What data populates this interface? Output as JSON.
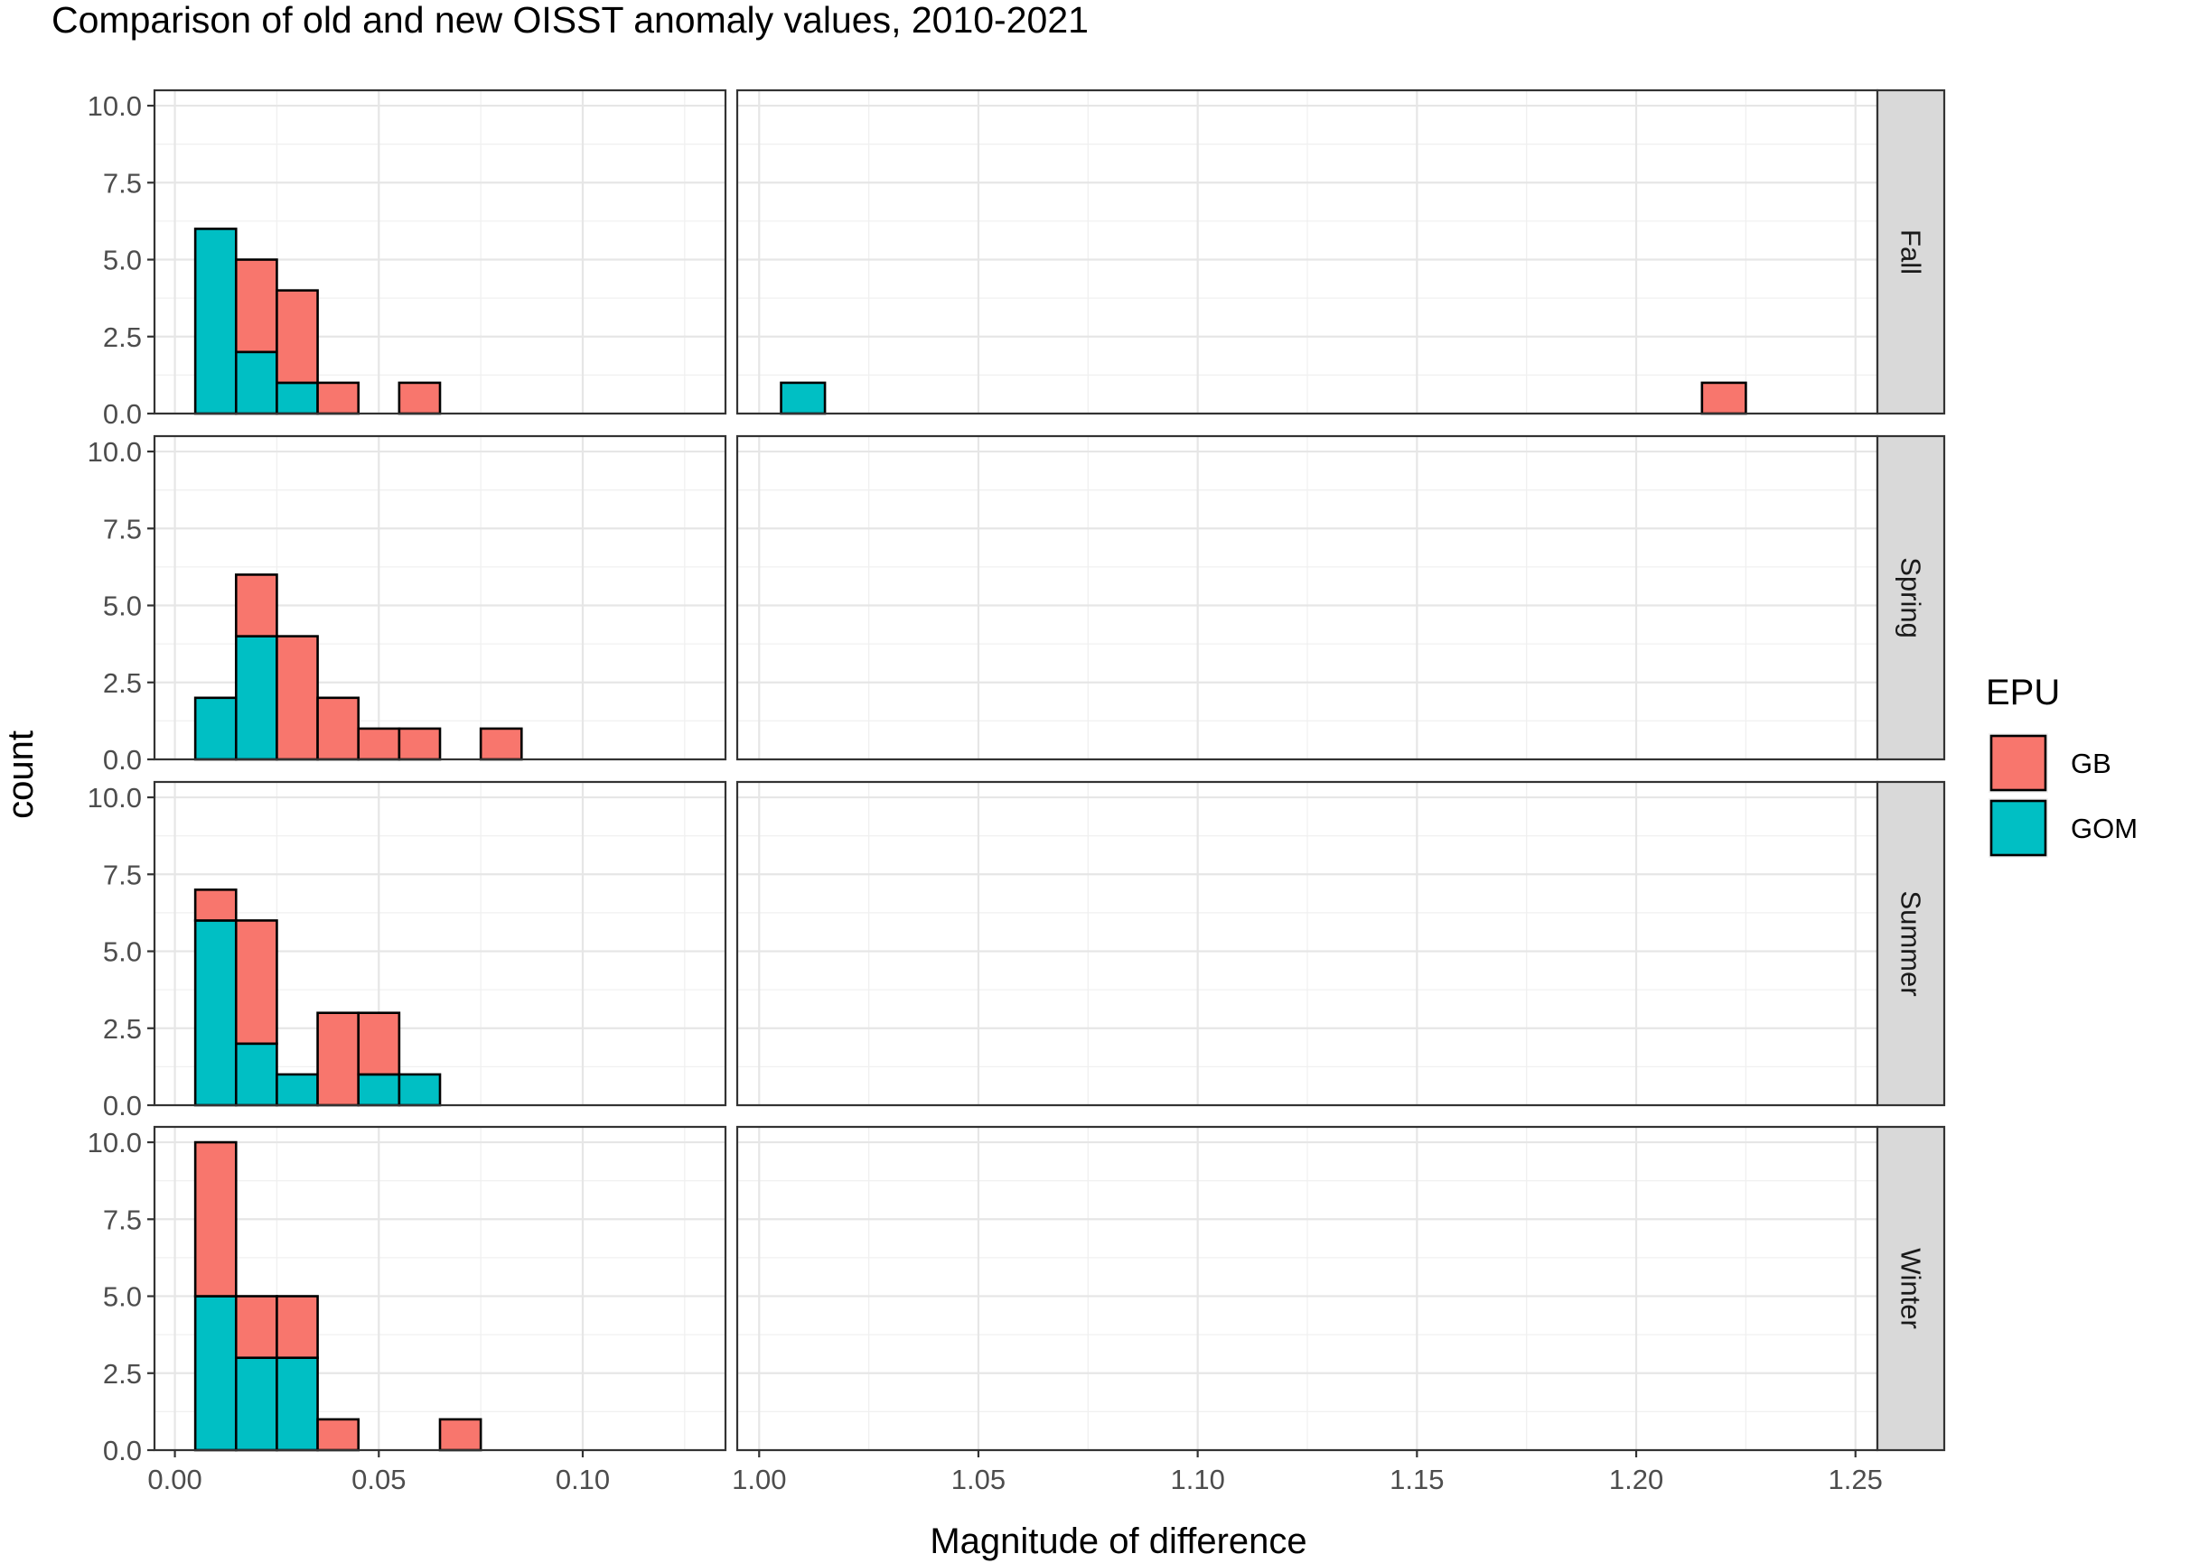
{
  "chart_data": {
    "type": "bar",
    "subtype": "faceted stacked histogram",
    "title": "Comparison of old and new OISST anomaly values, 2010-2021",
    "xlabel": "Magnitude of difference",
    "ylabel": "count",
    "bin_width": 0.01,
    "ylim": [
      0,
      10.5
    ],
    "y_ticks": [
      "0.0",
      "2.5",
      "5.0",
      "7.5",
      "10.0"
    ],
    "y_tick_values": [
      0,
      2.5,
      5,
      7.5,
      10
    ],
    "x_panels": [
      {
        "xlim": [
          -0.005,
          0.135
        ],
        "x_ticks": [
          "0.00",
          "0.05",
          "0.10"
        ],
        "x_tick_values": [
          0.0,
          0.05,
          0.1
        ]
      },
      {
        "xlim": [
          0.995,
          1.255
        ],
        "x_ticks": [
          "1.00",
          "1.05",
          "1.10",
          "1.15",
          "1.20",
          "1.25"
        ],
        "x_tick_values": [
          1.0,
          1.05,
          1.1,
          1.15,
          1.2,
          1.25
        ]
      }
    ],
    "grid": true,
    "legend": {
      "title": "EPU",
      "position": "right",
      "entries": [
        {
          "name": "GB",
          "color": "#F8766D"
        },
        {
          "name": "GOM",
          "color": "#00BFC4"
        }
      ]
    },
    "facets": [
      {
        "label": "Fall",
        "bins": [
          {
            "x": 0.01,
            "GOM": 6,
            "GB": 0
          },
          {
            "x": 0.02,
            "GOM": 2,
            "GB": 3
          },
          {
            "x": 0.03,
            "GOM": 1,
            "GB": 3
          },
          {
            "x": 0.04,
            "GOM": 0,
            "GB": 1
          },
          {
            "x": 0.06,
            "GOM": 0,
            "GB": 1
          },
          {
            "x": 1.01,
            "GOM": 1,
            "GB": 0
          },
          {
            "x": 1.22,
            "GOM": 0,
            "GB": 1
          }
        ]
      },
      {
        "label": "Spring",
        "bins": [
          {
            "x": 0.01,
            "GOM": 2,
            "GB": 0
          },
          {
            "x": 0.02,
            "GOM": 4,
            "GB": 2
          },
          {
            "x": 0.03,
            "GOM": 0,
            "GB": 4
          },
          {
            "x": 0.04,
            "GOM": 0,
            "GB": 2
          },
          {
            "x": 0.05,
            "GOM": 0,
            "GB": 1
          },
          {
            "x": 0.06,
            "GOM": 0,
            "GB": 1
          },
          {
            "x": 0.08,
            "GOM": 0,
            "GB": 1
          }
        ]
      },
      {
        "label": "Summer",
        "bins": [
          {
            "x": 0.01,
            "GOM": 6,
            "GB": 1
          },
          {
            "x": 0.02,
            "GOM": 2,
            "GB": 4
          },
          {
            "x": 0.03,
            "GOM": 1,
            "GB": 0
          },
          {
            "x": 0.04,
            "GOM": 0,
            "GB": 3
          },
          {
            "x": 0.05,
            "GOM": 1,
            "GB": 2
          },
          {
            "x": 0.06,
            "GOM": 1,
            "GB": 0
          }
        ]
      },
      {
        "label": "Winter",
        "bins": [
          {
            "x": 0.01,
            "GOM": 5,
            "GB": 5
          },
          {
            "x": 0.02,
            "GOM": 3,
            "GB": 2
          },
          {
            "x": 0.03,
            "GOM": 3,
            "GB": 2
          },
          {
            "x": 0.04,
            "GOM": 0,
            "GB": 1
          },
          {
            "x": 0.07,
            "GOM": 0,
            "GB": 1
          }
        ]
      }
    ]
  }
}
